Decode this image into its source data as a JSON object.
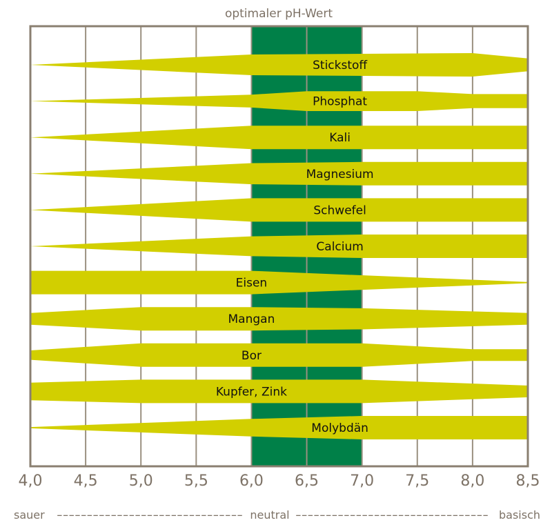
{
  "chart_data": {
    "type": "area",
    "title": "optimaler pH-Wert",
    "xlabel": "",
    "ylabel": "",
    "xlim": [
      4.0,
      8.5
    ],
    "x_ticks": [
      4.0,
      4.5,
      5.0,
      5.5,
      6.0,
      6.5,
      7.0,
      7.5,
      8.0,
      8.5
    ],
    "x_tick_labels": [
      "4,0",
      "4,5",
      "5,0",
      "5,5",
      "6,0",
      "6,5",
      "7,0",
      "7,5",
      "8,0",
      "8,5"
    ],
    "optimal_range": [
      6.0,
      7.0
    ],
    "grid": true,
    "value_meaning": "relative nutrient availability (band thickness), 0 to 1",
    "scale_text": {
      "left": "sauer",
      "middle": "neutral",
      "right": "basisch"
    },
    "series": [
      {
        "name": "Stickstoff",
        "label_ph": 6.8,
        "points": [
          [
            4.0,
            0.0
          ],
          [
            6.0,
            0.88
          ],
          [
            8.0,
            1.0
          ],
          [
            8.5,
            0.55
          ]
        ]
      },
      {
        "name": "Phosphat",
        "label_ph": 6.8,
        "points": [
          [
            4.0,
            0.0
          ],
          [
            6.0,
            0.55
          ],
          [
            6.5,
            0.85
          ],
          [
            7.5,
            0.85
          ],
          [
            8.0,
            0.6
          ],
          [
            8.5,
            0.6
          ]
        ]
      },
      {
        "name": "Kali",
        "label_ph": 6.8,
        "points": [
          [
            4.0,
            0.0
          ],
          [
            6.0,
            1.0
          ],
          [
            8.5,
            1.0
          ]
        ]
      },
      {
        "name": "Magnesium",
        "label_ph": 6.8,
        "points": [
          [
            4.0,
            0.0
          ],
          [
            6.0,
            0.9
          ],
          [
            7.0,
            1.0
          ],
          [
            8.5,
            1.0
          ]
        ]
      },
      {
        "name": "Schwefel",
        "label_ph": 6.8,
        "points": [
          [
            4.0,
            0.0
          ],
          [
            6.0,
            1.0
          ],
          [
            8.5,
            1.0
          ]
        ]
      },
      {
        "name": "Calcium",
        "label_ph": 6.8,
        "points": [
          [
            4.0,
            0.0
          ],
          [
            6.0,
            0.85
          ],
          [
            7.0,
            1.0
          ],
          [
            8.5,
            1.0
          ]
        ]
      },
      {
        "name": "Eisen",
        "label_ph": 6.0,
        "points": [
          [
            4.0,
            1.0
          ],
          [
            6.0,
            1.0
          ],
          [
            8.5,
            0.05
          ]
        ]
      },
      {
        "name": "Mangan",
        "label_ph": 6.0,
        "points": [
          [
            4.0,
            0.5
          ],
          [
            5.0,
            1.0
          ],
          [
            6.0,
            1.0
          ],
          [
            7.0,
            0.9
          ],
          [
            8.5,
            0.5
          ]
        ]
      },
      {
        "name": "Bor",
        "label_ph": 6.0,
        "points": [
          [
            4.0,
            0.4
          ],
          [
            5.0,
            1.0
          ],
          [
            7.0,
            1.0
          ],
          [
            8.0,
            0.5
          ],
          [
            8.5,
            0.5
          ]
        ]
      },
      {
        "name": "Kupfer, Zink",
        "label_ph": 6.0,
        "points": [
          [
            4.0,
            0.75
          ],
          [
            5.0,
            1.0
          ],
          [
            7.0,
            1.0
          ],
          [
            8.5,
            0.5
          ]
        ]
      },
      {
        "name": "Molybdän",
        "label_ph": 6.8,
        "points": [
          [
            4.0,
            0.05
          ],
          [
            6.0,
            0.75
          ],
          [
            7.0,
            1.0
          ],
          [
            8.5,
            1.0
          ]
        ]
      }
    ],
    "colors": {
      "band": "#d2cf00",
      "optimal": "#008048",
      "frame": "#8a7f70",
      "grid": "#9a9080",
      "text": "#7d7266",
      "label": "#111111"
    }
  }
}
